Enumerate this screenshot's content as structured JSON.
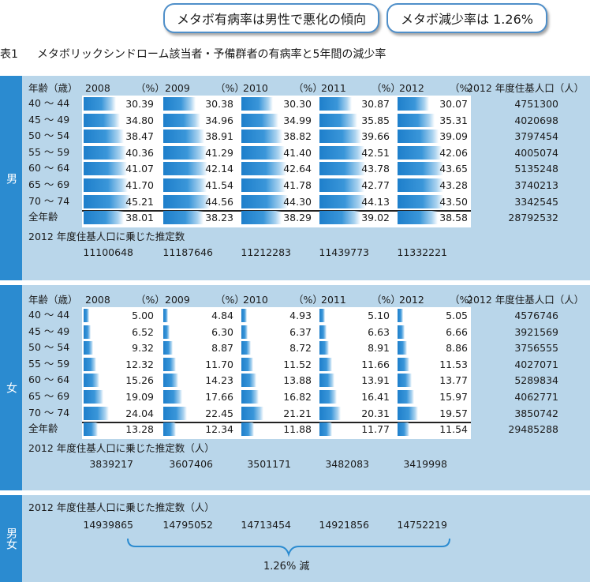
{
  "badges": [
    "メタボ有病率は男性で悪化の傾向",
    "メタボ減少率は 1.26%"
  ],
  "table_title": {
    "number": "表1",
    "text": "メタボリックシンドローム該当者・予備群者の有病率と5年間の減少率"
  },
  "header": {
    "age": "年齢（歳）",
    "pct": "（%）",
    "pop": "2012 年度住基人口（人）"
  },
  "age_groups": [
    "40 ～ 44",
    "45 ～ 49",
    "50 ～ 54",
    "55 ～ 59",
    "60 ～ 64",
    "65 ～ 69",
    "70 ～ 74"
  ],
  "total_label": "全年齢",
  "chart_data": {
    "type": "table",
    "years": [
      "2008",
      "2009",
      "2010",
      "2011",
      "2012"
    ],
    "male": {
      "label": "男",
      "rates": [
        [
          "30.39",
          "30.38",
          "30.30",
          "30.87",
          "30.07"
        ],
        [
          "34.80",
          "34.96",
          "34.99",
          "35.85",
          "35.31"
        ],
        [
          "38.47",
          "38.91",
          "38.82",
          "39.66",
          "39.09"
        ],
        [
          "40.36",
          "41.29",
          "41.40",
          "42.51",
          "42.06"
        ],
        [
          "41.07",
          "42.14",
          "42.64",
          "43.78",
          "43.65"
        ],
        [
          "41.70",
          "41.54",
          "41.78",
          "42.77",
          "43.28"
        ],
        [
          "45.21",
          "44.56",
          "44.30",
          "44.13",
          "43.50"
        ]
      ],
      "total": [
        "38.01",
        "38.23",
        "38.29",
        "39.02",
        "38.58"
      ],
      "population": [
        "4751300",
        "4020698",
        "3797454",
        "4005074",
        "5135248",
        "3740213",
        "3342545"
      ],
      "population_total": "28792532",
      "est_label": "2012 年度住基人口に乗じた推定数",
      "estimates": [
        "11100648",
        "11187646",
        "11212283",
        "11439773",
        "11332221"
      ]
    },
    "female": {
      "label": "女",
      "rates": [
        [
          "5.00",
          "4.84",
          "4.93",
          "5.10",
          "5.05"
        ],
        [
          "6.52",
          "6.30",
          "6.37",
          "6.63",
          "6.66"
        ],
        [
          "9.32",
          "8.87",
          "8.72",
          "8.91",
          "8.86"
        ],
        [
          "12.32",
          "11.70",
          "11.52",
          "11.66",
          "11.53"
        ],
        [
          "15.26",
          "14.23",
          "13.88",
          "13.91",
          "13.77"
        ],
        [
          "19.09",
          "17.66",
          "16.82",
          "16.41",
          "15.97"
        ],
        [
          "24.04",
          "22.45",
          "21.21",
          "20.31",
          "19.57"
        ]
      ],
      "total": [
        "13.28",
        "12.34",
        "11.88",
        "11.77",
        "11.54"
      ],
      "population": [
        "4576746",
        "3921569",
        "3756555",
        "4027071",
        "5289834",
        "4062771",
        "3850742"
      ],
      "population_total": "29485288",
      "est_label": "2012 年度住基人口に乗じた推定数（人）",
      "estimates": [
        "3839217",
        "3607406",
        "3501171",
        "3482083",
        "3419998"
      ]
    },
    "both": {
      "label": "男女",
      "est_label": "2012 年度住基人口に乗じた推定数（人）",
      "estimates": [
        "14939865",
        "14795052",
        "14713454",
        "14921856",
        "14752219"
      ],
      "reduction": "1.26% 減"
    }
  }
}
